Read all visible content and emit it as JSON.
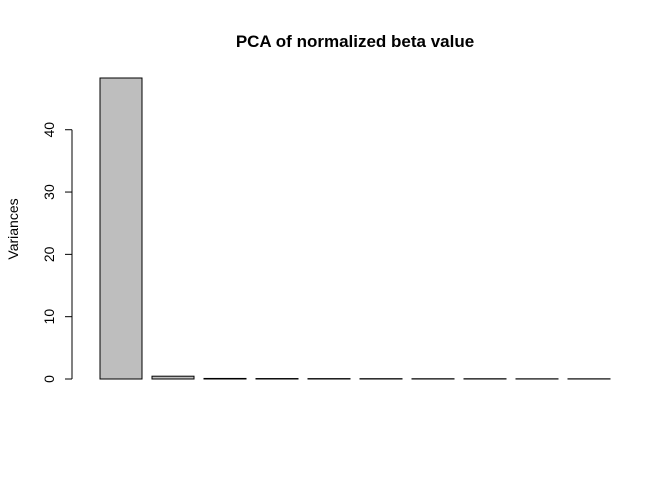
{
  "chart_data": {
    "type": "bar",
    "title": "PCA of normalized beta value",
    "xlabel": "",
    "ylabel": "Variances",
    "categories": [
      "",
      "",
      "",
      "",
      "",
      "",
      "",
      "",
      "",
      ""
    ],
    "values": [
      48.3,
      0.45,
      0.09,
      0.07,
      0.06,
      0.05,
      0.04,
      0.04,
      0.03,
      0.03
    ],
    "yticks": [
      0,
      10,
      20,
      30,
      40
    ],
    "ylim": [
      0,
      48.3
    ],
    "bar_fill": "#bebebe",
    "bar_stroke": "#000000",
    "grid": false,
    "legend": "none"
  }
}
